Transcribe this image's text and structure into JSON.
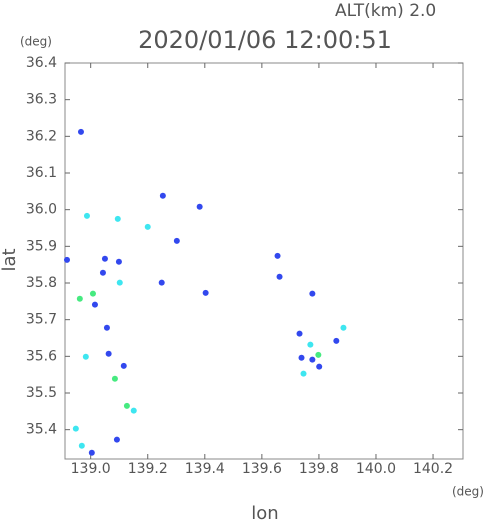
{
  "chart_data": {
    "type": "scatter",
    "title": "2020/01/06 12:00:51",
    "subtitle": "ALT(km) 2.0",
    "x_unit": "(deg)",
    "y_unit": "(deg)",
    "x_label": "lon",
    "y_label": "lat",
    "xlim": [
      138.91,
      140.305
    ],
    "ylim": [
      35.32,
      36.4
    ],
    "xticks": [
      {
        "value": 139,
        "label": "139.0"
      },
      139.2,
      139.4,
      139.6,
      139.8,
      {
        "value": 140,
        "label": "140.0"
      },
      140.2
    ],
    "yticks": [
      {
        "value": 35.4,
        "label": "35.4"
      },
      35.5,
      35.6,
      35.7,
      35.8,
      35.9,
      {
        "value": 36,
        "label": "36.0"
      },
      36.1,
      36.2,
      36.3,
      36.4
    ],
    "series": [
      {
        "color": "#3248ee",
        "x": [
          138.966,
          139.382,
          139.302,
          138.917,
          139.05,
          139.099,
          139.043,
          139.015,
          139.057,
          139.063,
          139.116,
          139.092,
          139.004,
          139.249,
          139.403,
          139.655,
          139.662,
          139.777,
          139.777,
          139.739,
          139.801,
          139.732,
          139.861,
          139.253
        ],
        "y": [
          36.212,
          36.008,
          35.915,
          35.863,
          35.866,
          35.858,
          35.828,
          35.741,
          35.678,
          35.607,
          35.574,
          35.373,
          35.337,
          35.801,
          35.773,
          35.874,
          35.817,
          35.771,
          35.591,
          35.596,
          35.572,
          35.662,
          35.642,
          36.038
        ]
      },
      {
        "color": "#3ee6f0",
        "x": [
          138.987,
          139.095,
          139.2,
          139.102,
          138.983,
          139.151,
          138.969,
          138.948,
          139.77,
          139.746,
          139.886
        ],
        "y": [
          35.983,
          35.975,
          35.953,
          35.801,
          35.599,
          35.452,
          35.356,
          35.403,
          35.632,
          35.553,
          35.678
        ]
      },
      {
        "color": "#46ea80",
        "x": [
          138.962,
          139.008,
          139.085,
          139.127,
          139.798
        ],
        "y": [
          35.757,
          35.771,
          35.539,
          35.465,
          35.604
        ]
      }
    ]
  }
}
